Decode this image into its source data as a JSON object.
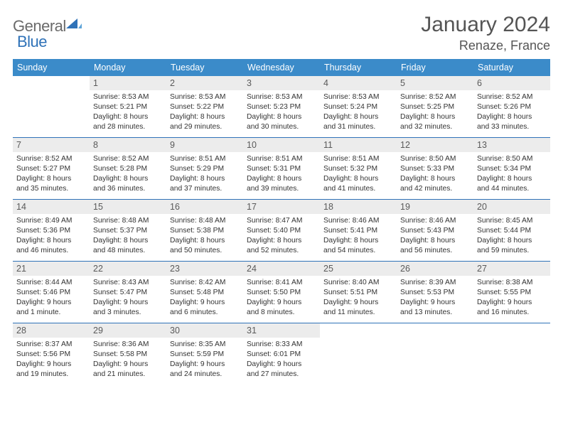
{
  "logo": {
    "text1": "General",
    "text2": "Blue"
  },
  "title": "January 2024",
  "location": "Renaze, France",
  "weekdays": [
    "Sunday",
    "Monday",
    "Tuesday",
    "Wednesday",
    "Thursday",
    "Friday",
    "Saturday"
  ],
  "colors": {
    "header_bg": "#3b8bc9",
    "week_border": "#2f72b8",
    "daynum_bg": "#ececec",
    "text_muted": "#555555"
  },
  "weeks": [
    [
      {
        "n": "",
        "sr": "",
        "ss": "",
        "dl1": "",
        "dl2": ""
      },
      {
        "n": "1",
        "sr": "Sunrise: 8:53 AM",
        "ss": "Sunset: 5:21 PM",
        "dl1": "Daylight: 8 hours",
        "dl2": "and 28 minutes."
      },
      {
        "n": "2",
        "sr": "Sunrise: 8:53 AM",
        "ss": "Sunset: 5:22 PM",
        "dl1": "Daylight: 8 hours",
        "dl2": "and 29 minutes."
      },
      {
        "n": "3",
        "sr": "Sunrise: 8:53 AM",
        "ss": "Sunset: 5:23 PM",
        "dl1": "Daylight: 8 hours",
        "dl2": "and 30 minutes."
      },
      {
        "n": "4",
        "sr": "Sunrise: 8:53 AM",
        "ss": "Sunset: 5:24 PM",
        "dl1": "Daylight: 8 hours",
        "dl2": "and 31 minutes."
      },
      {
        "n": "5",
        "sr": "Sunrise: 8:52 AM",
        "ss": "Sunset: 5:25 PM",
        "dl1": "Daylight: 8 hours",
        "dl2": "and 32 minutes."
      },
      {
        "n": "6",
        "sr": "Sunrise: 8:52 AM",
        "ss": "Sunset: 5:26 PM",
        "dl1": "Daylight: 8 hours",
        "dl2": "and 33 minutes."
      }
    ],
    [
      {
        "n": "7",
        "sr": "Sunrise: 8:52 AM",
        "ss": "Sunset: 5:27 PM",
        "dl1": "Daylight: 8 hours",
        "dl2": "and 35 minutes."
      },
      {
        "n": "8",
        "sr": "Sunrise: 8:52 AM",
        "ss": "Sunset: 5:28 PM",
        "dl1": "Daylight: 8 hours",
        "dl2": "and 36 minutes."
      },
      {
        "n": "9",
        "sr": "Sunrise: 8:51 AM",
        "ss": "Sunset: 5:29 PM",
        "dl1": "Daylight: 8 hours",
        "dl2": "and 37 minutes."
      },
      {
        "n": "10",
        "sr": "Sunrise: 8:51 AM",
        "ss": "Sunset: 5:31 PM",
        "dl1": "Daylight: 8 hours",
        "dl2": "and 39 minutes."
      },
      {
        "n": "11",
        "sr": "Sunrise: 8:51 AM",
        "ss": "Sunset: 5:32 PM",
        "dl1": "Daylight: 8 hours",
        "dl2": "and 41 minutes."
      },
      {
        "n": "12",
        "sr": "Sunrise: 8:50 AM",
        "ss": "Sunset: 5:33 PM",
        "dl1": "Daylight: 8 hours",
        "dl2": "and 42 minutes."
      },
      {
        "n": "13",
        "sr": "Sunrise: 8:50 AM",
        "ss": "Sunset: 5:34 PM",
        "dl1": "Daylight: 8 hours",
        "dl2": "and 44 minutes."
      }
    ],
    [
      {
        "n": "14",
        "sr": "Sunrise: 8:49 AM",
        "ss": "Sunset: 5:36 PM",
        "dl1": "Daylight: 8 hours",
        "dl2": "and 46 minutes."
      },
      {
        "n": "15",
        "sr": "Sunrise: 8:48 AM",
        "ss": "Sunset: 5:37 PM",
        "dl1": "Daylight: 8 hours",
        "dl2": "and 48 minutes."
      },
      {
        "n": "16",
        "sr": "Sunrise: 8:48 AM",
        "ss": "Sunset: 5:38 PM",
        "dl1": "Daylight: 8 hours",
        "dl2": "and 50 minutes."
      },
      {
        "n": "17",
        "sr": "Sunrise: 8:47 AM",
        "ss": "Sunset: 5:40 PM",
        "dl1": "Daylight: 8 hours",
        "dl2": "and 52 minutes."
      },
      {
        "n": "18",
        "sr": "Sunrise: 8:46 AM",
        "ss": "Sunset: 5:41 PM",
        "dl1": "Daylight: 8 hours",
        "dl2": "and 54 minutes."
      },
      {
        "n": "19",
        "sr": "Sunrise: 8:46 AM",
        "ss": "Sunset: 5:43 PM",
        "dl1": "Daylight: 8 hours",
        "dl2": "and 56 minutes."
      },
      {
        "n": "20",
        "sr": "Sunrise: 8:45 AM",
        "ss": "Sunset: 5:44 PM",
        "dl1": "Daylight: 8 hours",
        "dl2": "and 59 minutes."
      }
    ],
    [
      {
        "n": "21",
        "sr": "Sunrise: 8:44 AM",
        "ss": "Sunset: 5:46 PM",
        "dl1": "Daylight: 9 hours",
        "dl2": "and 1 minute."
      },
      {
        "n": "22",
        "sr": "Sunrise: 8:43 AM",
        "ss": "Sunset: 5:47 PM",
        "dl1": "Daylight: 9 hours",
        "dl2": "and 3 minutes."
      },
      {
        "n": "23",
        "sr": "Sunrise: 8:42 AM",
        "ss": "Sunset: 5:48 PM",
        "dl1": "Daylight: 9 hours",
        "dl2": "and 6 minutes."
      },
      {
        "n": "24",
        "sr": "Sunrise: 8:41 AM",
        "ss": "Sunset: 5:50 PM",
        "dl1": "Daylight: 9 hours",
        "dl2": "and 8 minutes."
      },
      {
        "n": "25",
        "sr": "Sunrise: 8:40 AM",
        "ss": "Sunset: 5:51 PM",
        "dl1": "Daylight: 9 hours",
        "dl2": "and 11 minutes."
      },
      {
        "n": "26",
        "sr": "Sunrise: 8:39 AM",
        "ss": "Sunset: 5:53 PM",
        "dl1": "Daylight: 9 hours",
        "dl2": "and 13 minutes."
      },
      {
        "n": "27",
        "sr": "Sunrise: 8:38 AM",
        "ss": "Sunset: 5:55 PM",
        "dl1": "Daylight: 9 hours",
        "dl2": "and 16 minutes."
      }
    ],
    [
      {
        "n": "28",
        "sr": "Sunrise: 8:37 AM",
        "ss": "Sunset: 5:56 PM",
        "dl1": "Daylight: 9 hours",
        "dl2": "and 19 minutes."
      },
      {
        "n": "29",
        "sr": "Sunrise: 8:36 AM",
        "ss": "Sunset: 5:58 PM",
        "dl1": "Daylight: 9 hours",
        "dl2": "and 21 minutes."
      },
      {
        "n": "30",
        "sr": "Sunrise: 8:35 AM",
        "ss": "Sunset: 5:59 PM",
        "dl1": "Daylight: 9 hours",
        "dl2": "and 24 minutes."
      },
      {
        "n": "31",
        "sr": "Sunrise: 8:33 AM",
        "ss": "Sunset: 6:01 PM",
        "dl1": "Daylight: 9 hours",
        "dl2": "and 27 minutes."
      },
      {
        "n": "",
        "sr": "",
        "ss": "",
        "dl1": "",
        "dl2": ""
      },
      {
        "n": "",
        "sr": "",
        "ss": "",
        "dl1": "",
        "dl2": ""
      },
      {
        "n": "",
        "sr": "",
        "ss": "",
        "dl1": "",
        "dl2": ""
      }
    ]
  ]
}
